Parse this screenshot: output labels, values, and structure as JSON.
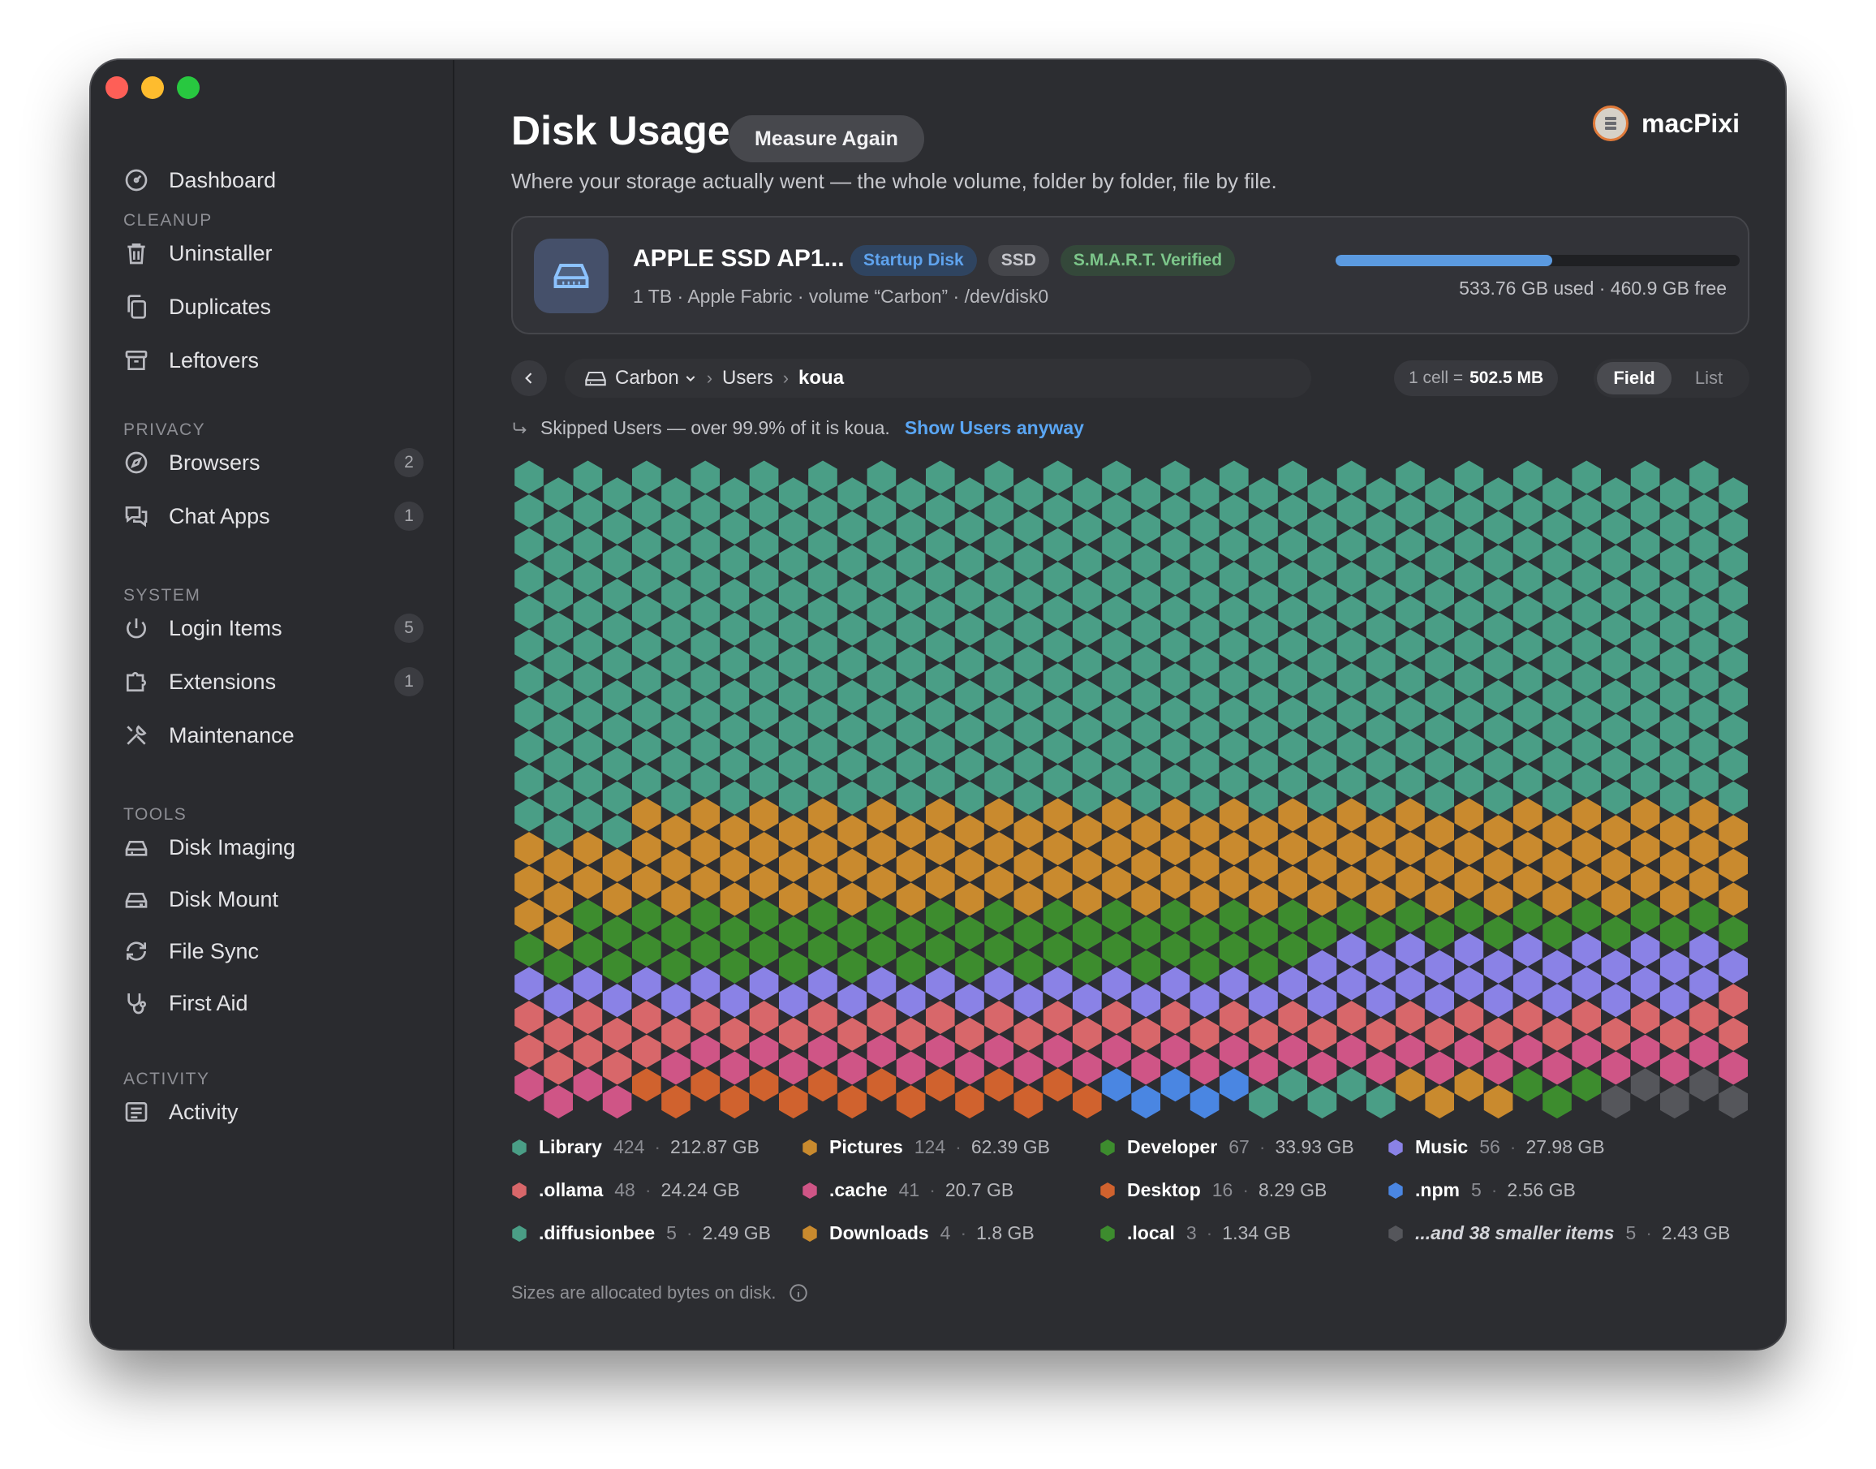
{
  "window": {
    "traffic_lights": [
      "close",
      "minimize",
      "zoom"
    ]
  },
  "sidebar": {
    "top_item": {
      "label": "Dashboard",
      "icon": "dashboard-icon"
    },
    "sections": [
      {
        "title": "CLEANUP",
        "items": [
          {
            "label": "Uninstaller",
            "icon": "trash-icon"
          },
          {
            "label": "Duplicates",
            "icon": "duplicates-icon"
          },
          {
            "label": "Leftovers",
            "icon": "archive-box-icon"
          }
        ]
      },
      {
        "title": "PRIVACY",
        "items": [
          {
            "label": "Browsers",
            "icon": "compass-icon",
            "count": "2"
          },
          {
            "label": "Chat Apps",
            "icon": "chat-bubbles-icon",
            "count": "1"
          }
        ]
      },
      {
        "title": "SYSTEM",
        "items": [
          {
            "label": "Login Items",
            "icon": "power-icon",
            "count": "5"
          },
          {
            "label": "Extensions",
            "icon": "puzzle-icon",
            "count": "1"
          },
          {
            "label": "Maintenance",
            "icon": "wrench-screwdriver-icon"
          }
        ]
      },
      {
        "title": "TOOLS",
        "items": [
          {
            "label": "Disk Imaging",
            "icon": "disk-imaging-icon"
          },
          {
            "label": "Disk Mount",
            "icon": "disk-mount-icon"
          },
          {
            "label": "File Sync",
            "icon": "sync-arrows-icon"
          },
          {
            "label": "First Aid",
            "icon": "stethoscope-icon"
          }
        ]
      },
      {
        "title": "ACTIVITY",
        "items": [
          {
            "label": "Activity",
            "icon": "activity-list-icon"
          }
        ]
      }
    ]
  },
  "header": {
    "title": "Disk Usage",
    "measure_label": "Measure Again",
    "subtitle": "Where your storage actually went — the whole volume, folder by folder, file by file.",
    "brand": "macPixi"
  },
  "disk": {
    "name": "APPLE SSD AP1...",
    "badges": [
      "Startup Disk",
      "SSD",
      "S.M.A.R.T. Verified"
    ],
    "meta": "1 TB · Apple Fabric · volume “Carbon” · /dev/disk0",
    "usage_text": "533.76 GB used · 460.9 GB free",
    "used_fraction": 0.5366
  },
  "toolbar": {
    "crumbs": [
      "Carbon",
      "Users",
      "koua"
    ],
    "cell_label": "1 cell =",
    "cell_value": "502.5 MB",
    "view_modes": [
      "Field",
      "List"
    ],
    "active_view": "Field"
  },
  "skip_note": {
    "text": "Skipped Users — over 99.9% of it is koua.",
    "link": "Show Users anyway"
  },
  "legend": [
    {
      "name": "Library",
      "count": "424",
      "size": "212.87 GB",
      "color": "#4a9e86"
    },
    {
      "name": "Pictures",
      "count": "124",
      "size": "62.39 GB",
      "color": "#c98a2e"
    },
    {
      "name": "Developer",
      "count": "67",
      "size": "33.93 GB",
      "color": "#3d8c2e"
    },
    {
      "name": "Music",
      "count": "56",
      "size": "27.98 GB",
      "color": "#8a82e6"
    },
    {
      "name": ".ollama",
      "count": "48",
      "size": "24.24 GB",
      "color": "#d8676a"
    },
    {
      "name": ".cache",
      "count": "41",
      "size": "20.7 GB",
      "color": "#cf5586"
    },
    {
      "name": "Desktop",
      "count": "16",
      "size": "8.29 GB",
      "color": "#d0622e"
    },
    {
      "name": ".npm",
      "count": "5",
      "size": "2.56 GB",
      "color": "#4a86e2"
    },
    {
      "name": ".diffusionbee",
      "count": "5",
      "size": "2.49 GB",
      "color": "#4a9e86"
    },
    {
      "name": "Downloads",
      "count": "4",
      "size": "1.8 GB",
      "color": "#c98a2e"
    },
    {
      "name": ".local",
      "count": "3",
      "size": "1.34 GB",
      "color": "#3d8c2e"
    },
    {
      "name": "...and 38 smaller items",
      "count": "5",
      "size": "2.43 GB",
      "color": "#55565b"
    }
  ],
  "footnote": "Sizes are allocated bytes on disk."
}
